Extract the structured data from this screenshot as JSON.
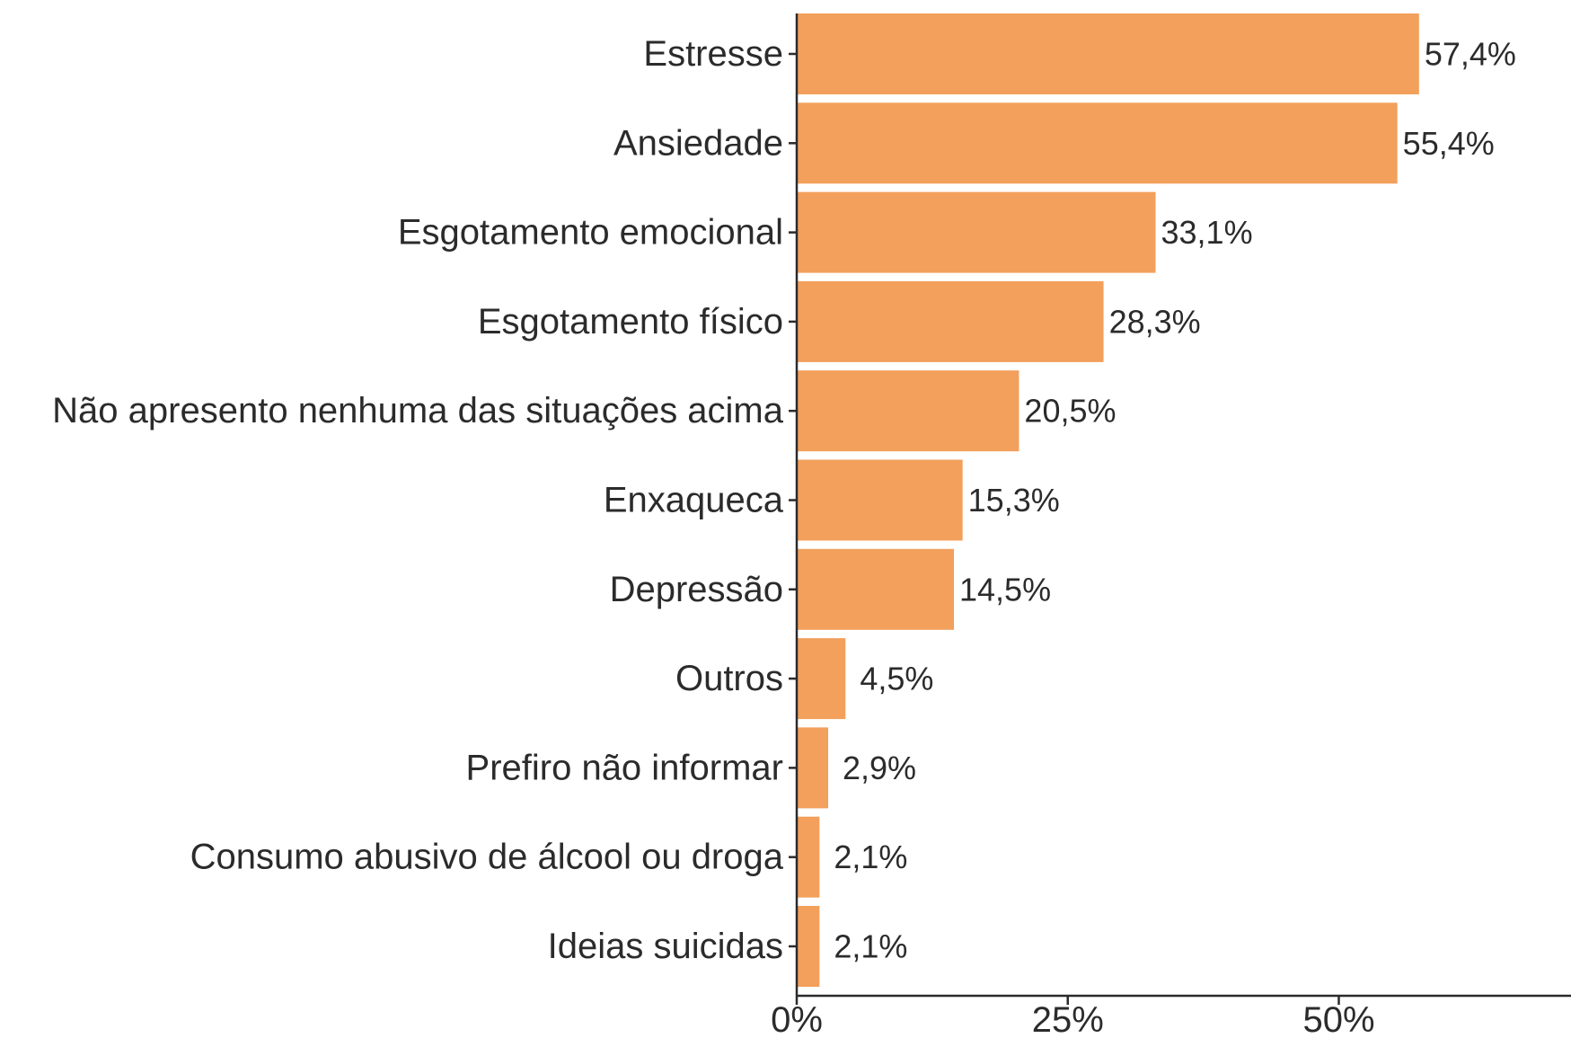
{
  "chart_data": {
    "type": "bar",
    "orientation": "horizontal",
    "categories": [
      "Estresse",
      "Ansiedade",
      "Esgotamento emocional",
      "Esgotamento físico",
      "Não apresento nenhuma das situações acima",
      "Enxaqueca",
      "Depressão",
      "Outros",
      "Prefiro não informar",
      "Consumo abusivo de álcool ou droga",
      "Ideias suicidas"
    ],
    "values": [
      57.4,
      55.4,
      33.1,
      28.3,
      20.5,
      15.3,
      14.5,
      4.5,
      2.9,
      2.1,
      2.1
    ],
    "value_labels": [
      "57,4%",
      "55,4%",
      "33,1%",
      "28,3%",
      "20,5%",
      "15,3%",
      "14,5%",
      "4,5%",
      "2,9%",
      "2,1%",
      "2,1%"
    ],
    "x_ticks": [
      0,
      25,
      50
    ],
    "x_tick_labels": [
      "0%",
      "25%",
      "50%"
    ],
    "xlim": [
      0,
      71.5
    ],
    "bar_color": "#F2A05C",
    "title": "",
    "xlabel": "",
    "ylabel": "",
    "grid": false,
    "legend": "none"
  }
}
